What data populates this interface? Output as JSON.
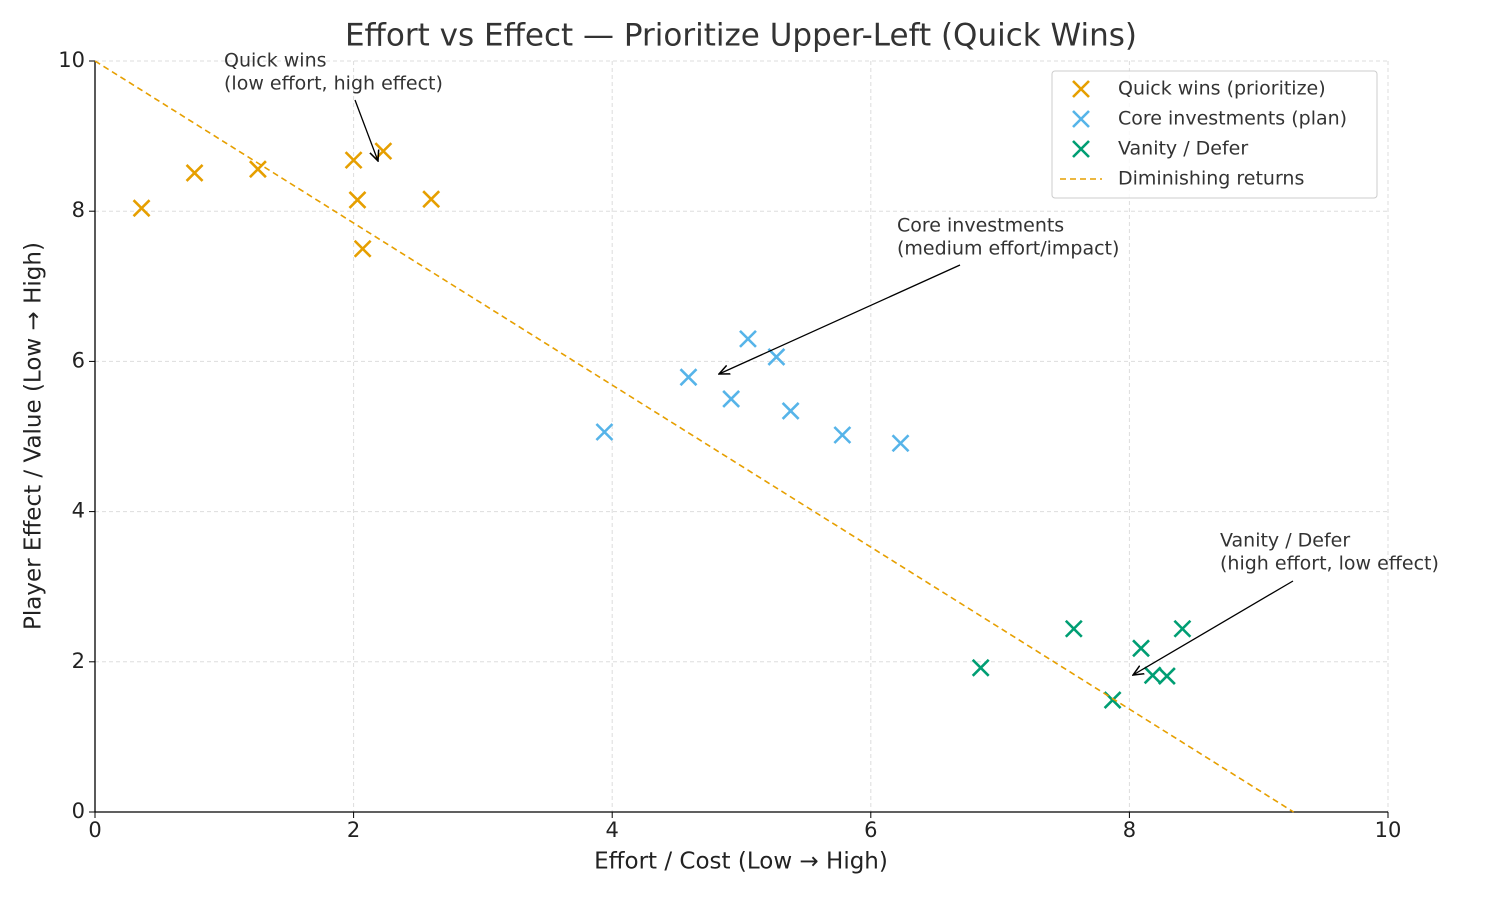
{
  "chart_data": {
    "type": "scatter",
    "title": "Effort vs Effect — Prioritize Upper-Left (Quick Wins)",
    "xlabel": "Effort / Cost (Low → High)",
    "ylabel": "Player Effect / Value (Low → High)",
    "xlim": [
      0,
      10
    ],
    "ylim": [
      0,
      10
    ],
    "xticks": [
      0,
      2,
      4,
      6,
      8,
      10
    ],
    "yticks": [
      0,
      2,
      4,
      6,
      8,
      10
    ],
    "grid": true,
    "legend": "upper right",
    "series": [
      {
        "name": "Quick wins (prioritize)",
        "color": "#E69F00",
        "marker": "x",
        "x": [
          0.36,
          0.77,
          1.26,
          2.0,
          2.03,
          2.07,
          2.23,
          2.6
        ],
        "values": [
          8.04,
          8.51,
          8.56,
          8.68,
          8.15,
          7.5,
          8.8,
          8.16
        ]
      },
      {
        "name": "Core investments (plan)",
        "color": "#56B4E9",
        "marker": "x",
        "x": [
          3.94,
          4.59,
          4.92,
          5.05,
          5.27,
          5.38,
          5.78,
          6.23
        ],
        "values": [
          5.06,
          5.79,
          5.5,
          6.3,
          6.06,
          5.34,
          5.02,
          4.91
        ]
      },
      {
        "name": "Vanity / Defer",
        "color": "#009E73",
        "marker": "x",
        "x": [
          6.85,
          7.57,
          7.87,
          8.09,
          8.18,
          8.29,
          8.41
        ],
        "values": [
          1.92,
          2.44,
          1.49,
          2.18,
          1.82,
          1.81,
          2.44
        ]
      },
      {
        "name": "Diminishing returns",
        "color": "#E69F00",
        "type": "line",
        "linestyle": "dashed",
        "x": [
          0,
          9.27
        ],
        "values": [
          10,
          0
        ]
      }
    ],
    "annotations": [
      [
        "Quick wins",
        "(low effort, high effect)"
      ],
      [
        "Core investments",
        "(medium effort/impact)"
      ],
      [
        "Vanity / Defer",
        "(high effort, low effect)"
      ]
    ]
  }
}
